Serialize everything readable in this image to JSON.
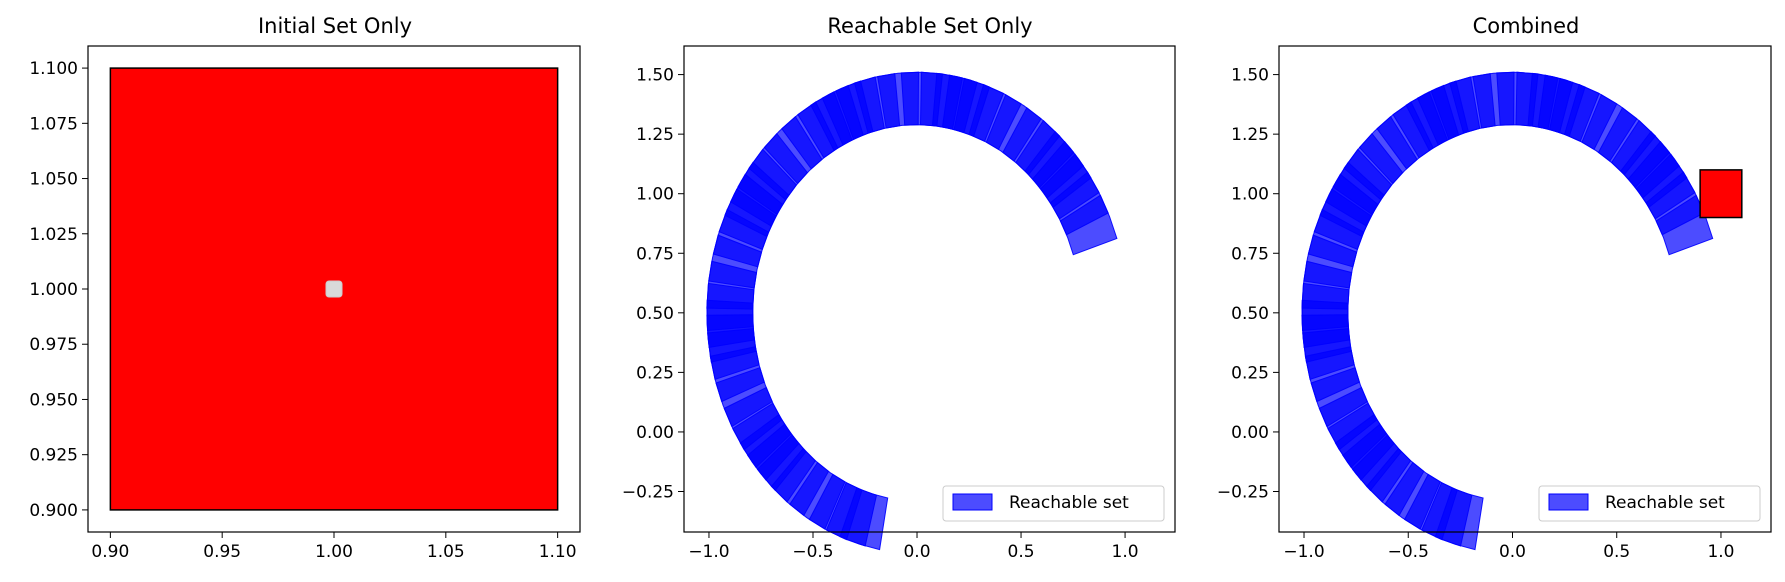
{
  "colors": {
    "initial_fill": "#ff0000",
    "initial_edge": "#000000",
    "reach_fill": "#0000ff",
    "marker": "#d9d9d9"
  },
  "chart_data": [
    {
      "type": "area",
      "title": "Initial Set Only",
      "xlim": [
        0.89,
        1.11
      ],
      "ylim": [
        0.89,
        1.11
      ],
      "xticks": [
        0.9,
        0.95,
        1.0,
        1.05,
        1.1
      ],
      "xtick_labels": [
        "0.90",
        "0.95",
        "1.00",
        "1.05",
        "1.10"
      ],
      "yticks": [
        0.9,
        0.925,
        0.95,
        0.975,
        1.0,
        1.025,
        1.05,
        1.075,
        1.1
      ],
      "ytick_labels": [
        "0.900",
        "0.925",
        "0.950",
        "0.975",
        "1.000",
        "1.025",
        "1.050",
        "1.075",
        "1.100"
      ],
      "initial_set": {
        "x": [
          0.9,
          1.1
        ],
        "y": [
          0.9,
          1.1
        ]
      },
      "center_point": [
        1.0,
        1.0
      ],
      "grid": false
    },
    {
      "type": "area",
      "title": "Reachable Set Only",
      "xlim": [
        -1.12,
        1.24
      ],
      "ylim": [
        -0.42,
        1.62
      ],
      "xticks": [
        -1.0,
        -0.5,
        0.0,
        0.5,
        1.0
      ],
      "xtick_labels": [
        "−1.0",
        "−0.5",
        "0.0",
        "0.5",
        "1.0"
      ],
      "yticks": [
        -0.25,
        0.0,
        0.25,
        0.5,
        0.75,
        1.0,
        1.25,
        1.5
      ],
      "ytick_labels": [
        "−0.25",
        "0.00",
        "0.25",
        "0.50",
        "0.75",
        "1.00",
        "1.25",
        "1.50"
      ],
      "legend": {
        "label": "Reachable set",
        "position": "lower-right"
      },
      "reachable_set": {
        "center": [
          0.0,
          0.5
        ],
        "radius_inner": 0.79,
        "radius_outer": 1.01,
        "start_angle_deg": 18,
        "end_angle_deg": 253,
        "steps": 46,
        "opacity": 0.7
      },
      "grid": false
    },
    {
      "type": "area",
      "title": "Combined",
      "xlim": [
        -1.12,
        1.24
      ],
      "ylim": [
        -0.42,
        1.62
      ],
      "xticks": [
        -1.0,
        -0.5,
        0.0,
        0.5,
        1.0
      ],
      "xtick_labels": [
        "−1.0",
        "−0.5",
        "0.0",
        "0.5",
        "1.0"
      ],
      "yticks": [
        -0.25,
        0.0,
        0.25,
        0.5,
        0.75,
        1.0,
        1.25,
        1.5
      ],
      "ytick_labels": [
        "−0.25",
        "0.00",
        "0.25",
        "0.50",
        "0.75",
        "1.00",
        "1.25",
        "1.50"
      ],
      "legend": {
        "label": "Reachable set",
        "position": "lower-right"
      },
      "reachable_set": {
        "center": [
          0.0,
          0.5
        ],
        "radius_inner": 0.79,
        "radius_outer": 1.01,
        "start_angle_deg": 18,
        "end_angle_deg": 253,
        "steps": 46,
        "opacity": 0.7
      },
      "initial_set": {
        "x": [
          0.9,
          1.1
        ],
        "y": [
          0.9,
          1.1
        ]
      },
      "grid": false
    }
  ]
}
